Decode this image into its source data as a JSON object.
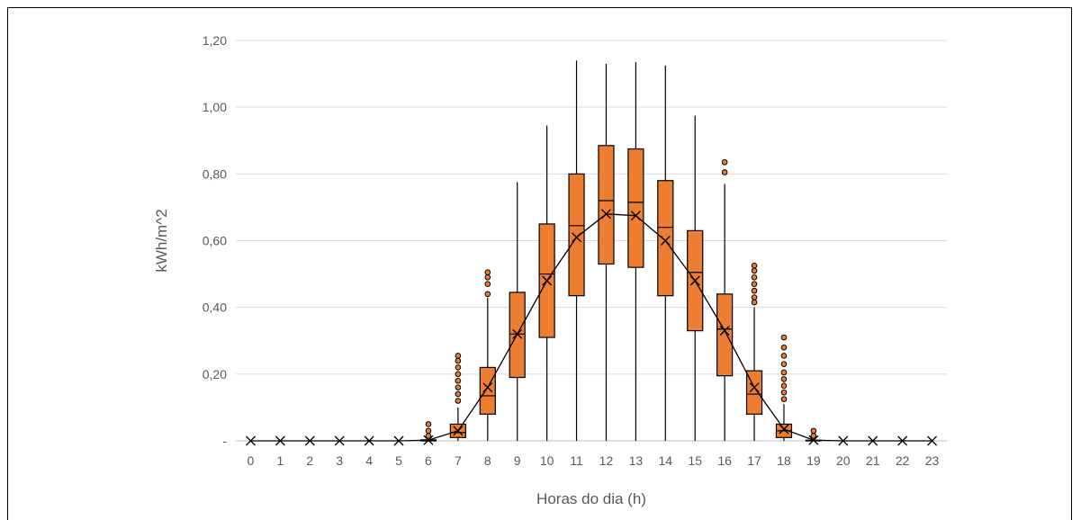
{
  "chart_data": {
    "type": "boxplot",
    "xlabel": "Horas do dia (h)",
    "ylabel": "kWh/m^2",
    "ylim": [
      0,
      1.2
    ],
    "yticks": [
      "-",
      "0,20",
      "0,40",
      "0,60",
      "0,80",
      "1,00",
      "1,20"
    ],
    "ytick_values": [
      0,
      0.2,
      0.4,
      0.6,
      0.8,
      1.0,
      1.2
    ],
    "categories": [
      "0",
      "1",
      "2",
      "3",
      "4",
      "5",
      "6",
      "7",
      "8",
      "9",
      "10",
      "11",
      "12",
      "13",
      "14",
      "15",
      "16",
      "17",
      "18",
      "19",
      "20",
      "21",
      "22",
      "23"
    ],
    "grid": true,
    "box_color": "#ED7D31",
    "outline_color": "#000000",
    "boxes": [
      {
        "hour": "0",
        "min": 0,
        "q1": 0,
        "median": 0,
        "q3": 0,
        "max": 0,
        "mean": 0,
        "outliers": []
      },
      {
        "hour": "1",
        "min": 0,
        "q1": 0,
        "median": 0,
        "q3": 0,
        "max": 0,
        "mean": 0,
        "outliers": []
      },
      {
        "hour": "2",
        "min": 0,
        "q1": 0,
        "median": 0,
        "q3": 0,
        "max": 0,
        "mean": 0,
        "outliers": []
      },
      {
        "hour": "3",
        "min": 0,
        "q1": 0,
        "median": 0,
        "q3": 0,
        "max": 0,
        "mean": 0,
        "outliers": []
      },
      {
        "hour": "4",
        "min": 0,
        "q1": 0,
        "median": 0,
        "q3": 0,
        "max": 0,
        "mean": 0,
        "outliers": []
      },
      {
        "hour": "5",
        "min": 0,
        "q1": 0,
        "median": 0,
        "q3": 0,
        "max": 0,
        "mean": 0,
        "outliers": []
      },
      {
        "hour": "6",
        "min": 0,
        "q1": 0,
        "median": 0,
        "q3": 0.003,
        "max": 0.005,
        "mean": 0.002,
        "outliers": [
          0.015,
          0.03,
          0.05
        ]
      },
      {
        "hour": "7",
        "min": 0,
        "q1": 0.01,
        "median": 0.025,
        "q3": 0.05,
        "max": 0.1,
        "mean": 0.03,
        "outliers": [
          0.12,
          0.14,
          0.16,
          0.18,
          0.2,
          0.22,
          0.24,
          0.255
        ]
      },
      {
        "hour": "8",
        "min": 0,
        "q1": 0.08,
        "median": 0.135,
        "q3": 0.22,
        "max": 0.43,
        "mean": 0.16,
        "outliers": [
          0.44,
          0.47,
          0.49,
          0.505
        ]
      },
      {
        "hour": "9",
        "min": 0,
        "q1": 0.19,
        "median": 0.32,
        "q3": 0.445,
        "max": 0.775,
        "mean": 0.32,
        "outliers": []
      },
      {
        "hour": "10",
        "min": 0,
        "q1": 0.31,
        "median": 0.5,
        "q3": 0.65,
        "max": 0.945,
        "mean": 0.48,
        "outliers": []
      },
      {
        "hour": "11",
        "min": 0,
        "q1": 0.435,
        "median": 0.645,
        "q3": 0.8,
        "max": 1.14,
        "mean": 0.61,
        "outliers": []
      },
      {
        "hour": "12",
        "min": 0,
        "q1": 0.53,
        "median": 0.72,
        "q3": 0.885,
        "max": 1.13,
        "mean": 0.68,
        "outliers": []
      },
      {
        "hour": "13",
        "min": 0,
        "q1": 0.52,
        "median": 0.715,
        "q3": 0.875,
        "max": 1.135,
        "mean": 0.675,
        "outliers": []
      },
      {
        "hour": "14",
        "min": 0,
        "q1": 0.435,
        "median": 0.64,
        "q3": 0.78,
        "max": 1.125,
        "mean": 0.6,
        "outliers": []
      },
      {
        "hour": "15",
        "min": 0,
        "q1": 0.33,
        "median": 0.505,
        "q3": 0.63,
        "max": 0.975,
        "mean": 0.48,
        "outliers": []
      },
      {
        "hour": "16",
        "min": 0,
        "q1": 0.195,
        "median": 0.335,
        "q3": 0.44,
        "max": 0.77,
        "mean": 0.33,
        "outliers": [
          0.805,
          0.835
        ]
      },
      {
        "hour": "17",
        "min": 0,
        "q1": 0.08,
        "median": 0.14,
        "q3": 0.21,
        "max": 0.4,
        "mean": 0.16,
        "outliers": [
          0.415,
          0.43,
          0.45,
          0.47,
          0.49,
          0.51,
          0.525
        ]
      },
      {
        "hour": "18",
        "min": 0,
        "q1": 0.01,
        "median": 0.03,
        "q3": 0.05,
        "max": 0.11,
        "mean": 0.035,
        "outliers": [
          0.125,
          0.145,
          0.165,
          0.185,
          0.205,
          0.23,
          0.255,
          0.28,
          0.31
        ]
      },
      {
        "hour": "19",
        "min": 0,
        "q1": 0,
        "median": 0,
        "q3": 0.002,
        "max": 0.005,
        "mean": 0.002,
        "outliers": [
          0.015,
          0.03
        ]
      },
      {
        "hour": "20",
        "min": 0,
        "q1": 0,
        "median": 0,
        "q3": 0,
        "max": 0,
        "mean": 0,
        "outliers": []
      },
      {
        "hour": "21",
        "min": 0,
        "q1": 0,
        "median": 0,
        "q3": 0,
        "max": 0,
        "mean": 0,
        "outliers": []
      },
      {
        "hour": "22",
        "min": 0,
        "q1": 0,
        "median": 0,
        "q3": 0,
        "max": 0,
        "mean": 0,
        "outliers": []
      },
      {
        "hour": "23",
        "min": 0,
        "q1": 0,
        "median": 0,
        "q3": 0,
        "max": 0,
        "mean": 0,
        "outliers": []
      }
    ],
    "mean_line": true
  }
}
